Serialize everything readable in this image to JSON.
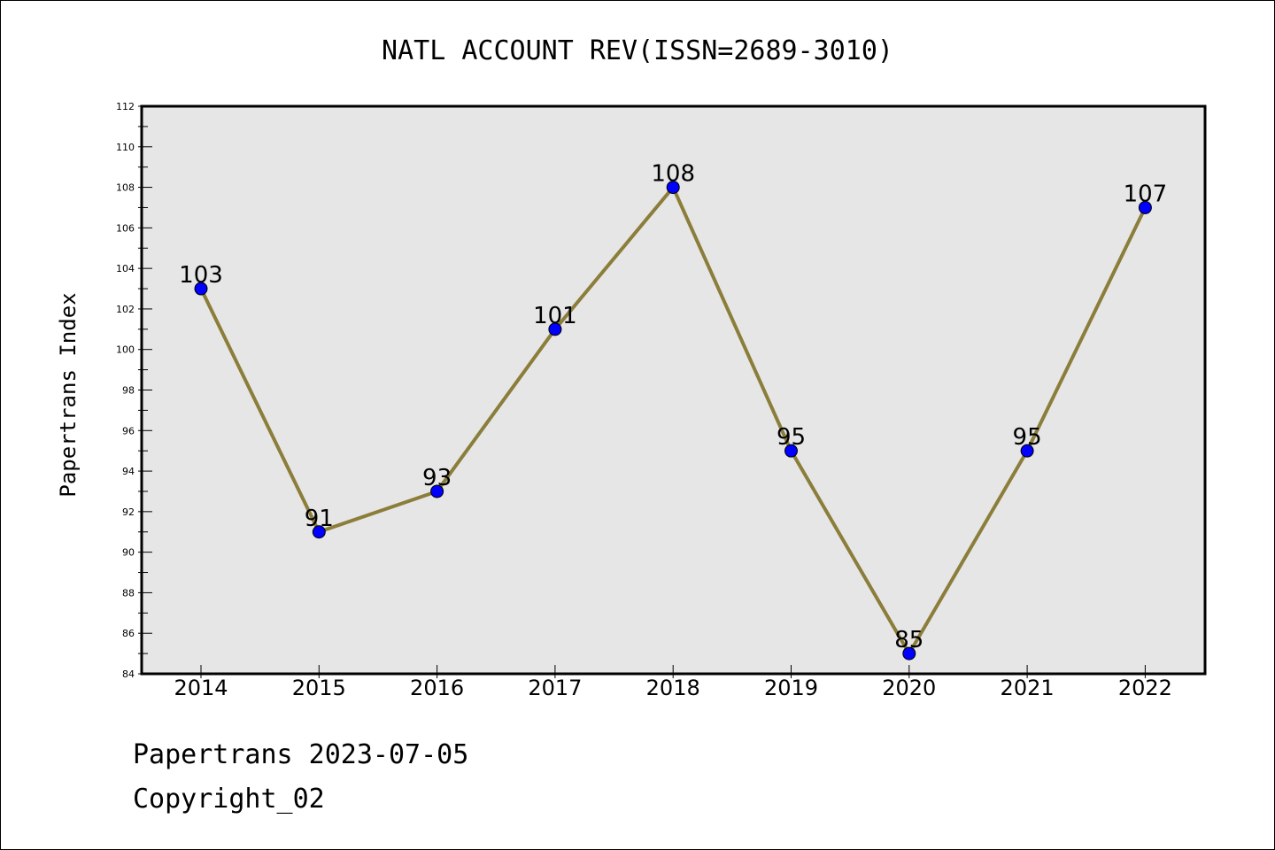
{
  "chart_data": {
    "type": "line",
    "title": "NATL ACCOUNT REV(ISSN=2689-3010)",
    "xlabel": "",
    "ylabel": "Papertrans Index",
    "x": [
      "2014",
      "2015",
      "2016",
      "2017",
      "2018",
      "2019",
      "2020",
      "2021",
      "2022"
    ],
    "series": [
      {
        "values": [
          103,
          91,
          93,
          101,
          108,
          95,
          85,
          95,
          107
        ],
        "line_color": "#8b7d3a",
        "marker_color": "#0000ff"
      }
    ],
    "ylim": [
      84,
      112
    ],
    "yticks": [
      84,
      86,
      88,
      90,
      92,
      94,
      96,
      98,
      100,
      102,
      104,
      106,
      108,
      110,
      112
    ],
    "grid": false,
    "plot_background": "#e6e6e6",
    "data_labels": true
  },
  "footer": {
    "line1": "Papertrans 2023-07-05",
    "line2": "Copyright_02"
  }
}
